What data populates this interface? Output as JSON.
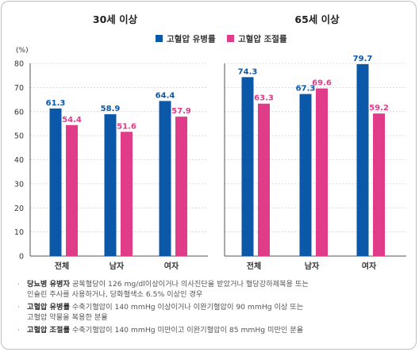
{
  "chart_data": [
    {
      "type": "bar",
      "title": "30세 이상",
      "ylabel": "(%)",
      "ylim": [
        0,
        80
      ],
      "yticks": [
        0,
        10,
        20,
        30,
        40,
        50,
        60,
        70,
        80
      ],
      "categories": [
        "전체",
        "남자",
        "여자"
      ],
      "series": [
        {
          "name": "고혈압 유병률",
          "color": "#0b57a8",
          "values": [
            61.3,
            58.9,
            64.4
          ],
          "labels": [
            "61.3",
            "58.9",
            "64.4"
          ]
        },
        {
          "name": "고혈압 조절률",
          "color": "#e03c8a",
          "values": [
            54.4,
            51.6,
            57.9
          ],
          "labels": [
            "54.4",
            "51.6",
            "57.9"
          ]
        }
      ],
      "grid": true
    },
    {
      "type": "bar",
      "title": "65세 이상",
      "ylim": [
        0,
        80
      ],
      "categories": [
        "전체",
        "남자",
        "여자"
      ],
      "series": [
        {
          "name": "고혈압 유병률",
          "color": "#0b57a8",
          "values": [
            74.3,
            67.3,
            79.7
          ],
          "labels": [
            "74.3",
            "67.3",
            "79.7"
          ]
        },
        {
          "name": "고혈압 조절률",
          "color": "#e03c8a",
          "values": [
            63.3,
            69.6,
            59.2
          ],
          "labels": [
            "63.3",
            "69.6",
            "59.2"
          ]
        }
      ],
      "grid": true
    }
  ],
  "legend": [
    {
      "label": "고혈압 유병률",
      "color": "#0b57a8"
    },
    {
      "label": "고혈압 조절률",
      "color": "#e03c8a"
    }
  ],
  "notes": [
    {
      "term": "당뇨병 유병자",
      "text": " 공복혈당이 126 mg/dl이상이거나 의사진단을 받았거나 혈당강하제복용 또는",
      "text2": "인슐린 주사를 사용하거나, 당화혈색소 6.5% 이상인 경우"
    },
    {
      "term": "고혈압 유병률",
      "text": " 수축기혈압이 140 mmHg 이상이거나 이완기혈압이 90 mmHg 이상 또는",
      "text2": "고혈압 약물을 복용한 분율"
    },
    {
      "term": "고혈압 조절률",
      "text": " 수축기혈압이 140 mmHg 미만이고 이완기혈압이 85 mmHg 미만인 분율",
      "text2": ""
    }
  ]
}
